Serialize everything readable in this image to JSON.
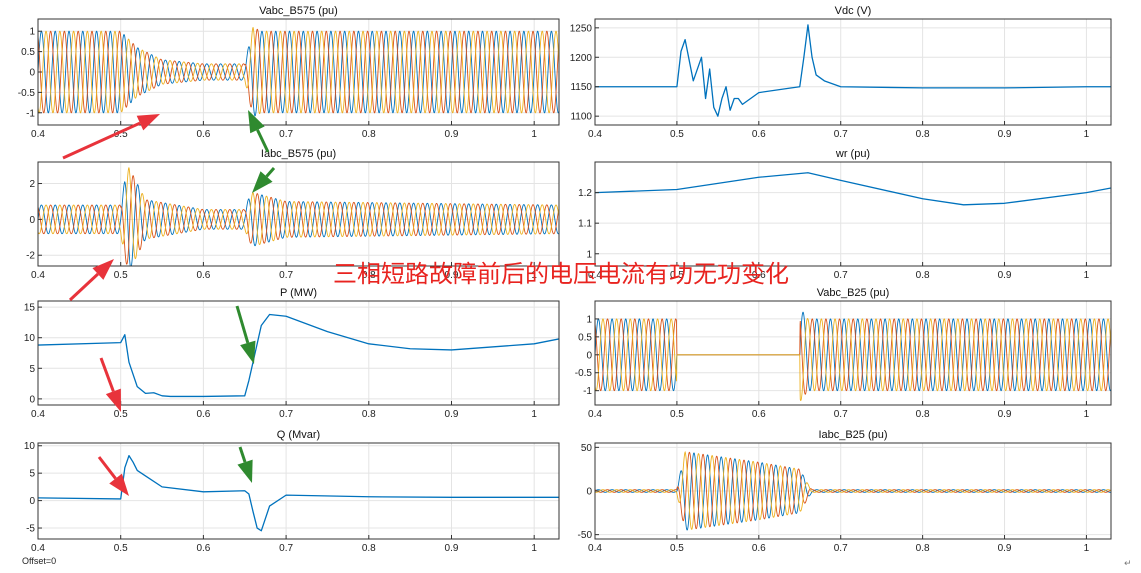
{
  "overlay": {
    "caption": "三相短路故障前后的电压电流有功无功变化",
    "offset_label": "Offset=0",
    "corner_mark": "↵"
  },
  "colors": {
    "phase_a": "#0072bd",
    "phase_b": "#d95319",
    "phase_c": "#edb120",
    "arrow_red": "#e8333b",
    "arrow_green": "#2f8a2f",
    "grid": "#e4e4e4",
    "axes": "#333333"
  },
  "chart_data": [
    {
      "type": "line",
      "id": "vabc-b575",
      "title": "Vabc_B575 (pu)",
      "xlim": [
        0.4,
        1.03
      ],
      "ylim": [
        -1.3,
        1.3
      ],
      "xticks": [
        "0.4",
        "0.5",
        "0.6",
        "0.7",
        "0.8",
        "0.9",
        "1"
      ],
      "yticks": [
        "-1",
        "-0.5",
        "0",
        "0.5",
        "1"
      ],
      "series": [
        {
          "model": "three-phase"
        }
      ],
      "envelope": {
        "t": [
          0.4,
          0.5,
          0.52,
          0.55,
          0.6,
          0.65,
          0.66,
          0.67,
          1.03
        ],
        "amplitude": [
          1.0,
          1.0,
          0.6,
          0.3,
          0.2,
          0.2,
          1.1,
          1.0,
          1.0
        ]
      },
      "grid": true
    },
    {
      "type": "line",
      "id": "vdc",
      "title": "Vdc (V)",
      "xlim": [
        0.4,
        1.03
      ],
      "ylim": [
        1085,
        1265
      ],
      "xticks": [
        "0.4",
        "0.5",
        "0.6",
        "0.7",
        "0.8",
        "0.9",
        "1"
      ],
      "yticks": [
        "1100",
        "1150",
        "1200",
        "1250"
      ],
      "series": [
        {
          "x": [
            0.4,
            0.5,
            0.505,
            0.51,
            0.52,
            0.53,
            0.535,
            0.54,
            0.545,
            0.55,
            0.555,
            0.56,
            0.565,
            0.57,
            0.575,
            0.58,
            0.6,
            0.64,
            0.65,
            0.655,
            0.66,
            0.665,
            0.67,
            0.68,
            0.7,
            0.8,
            0.9,
            1.0,
            1.03
          ],
          "y": [
            1150,
            1150,
            1210,
            1230,
            1160,
            1200,
            1130,
            1180,
            1115,
            1100,
            1130,
            1150,
            1110,
            1130,
            1130,
            1120,
            1140,
            1148,
            1150,
            1200,
            1255,
            1200,
            1170,
            1160,
            1150,
            1148,
            1148,
            1150,
            1150
          ]
        }
      ],
      "grid": true
    },
    {
      "type": "line",
      "id": "iabc-b575",
      "title": "Iabc_B575 (pu)",
      "xlim": [
        0.4,
        1.03
      ],
      "ylim": [
        -2.6,
        3.2
      ],
      "xticks": [
        "0.4",
        "0.5",
        "0.6",
        "0.7",
        "0.8",
        "0.9",
        "1"
      ],
      "yticks": [
        "-2",
        "0",
        "2"
      ],
      "series": [
        {
          "model": "three-phase"
        }
      ],
      "envelope": {
        "t": [
          0.4,
          0.5,
          0.505,
          0.51,
          0.53,
          0.6,
          0.65,
          0.655,
          0.66,
          0.7,
          1.03
        ],
        "amplitude": [
          0.8,
          0.8,
          2.2,
          2.9,
          1.1,
          0.55,
          0.55,
          1.2,
          1.5,
          1.0,
          0.8
        ]
      },
      "grid": true
    },
    {
      "type": "line",
      "id": "wr",
      "title": "wr (pu)",
      "xlim": [
        0.4,
        1.03
      ],
      "ylim": [
        0.96,
        1.3
      ],
      "xticks": [
        "0.4",
        "0.5",
        "0.6",
        "0.7",
        "0.8",
        "0.9",
        "1"
      ],
      "yticks": [
        "1",
        "1.1",
        "1.2"
      ],
      "series": [
        {
          "x": [
            0.4,
            0.5,
            0.55,
            0.6,
            0.66,
            0.7,
            0.8,
            0.85,
            0.9,
            1.0,
            1.03
          ],
          "y": [
            1.2,
            1.21,
            1.23,
            1.25,
            1.265,
            1.24,
            1.18,
            1.16,
            1.165,
            1.2,
            1.215
          ]
        }
      ],
      "grid": true
    },
    {
      "type": "line",
      "id": "p",
      "title": "P (MW)",
      "xlim": [
        0.4,
        1.03
      ],
      "ylim": [
        -1,
        16
      ],
      "xticks": [
        "0.4",
        "0.5",
        "0.6",
        "0.7",
        "0.8",
        "0.9",
        "1"
      ],
      "yticks": [
        "0",
        "5",
        "10",
        "15"
      ],
      "series": [
        {
          "x": [
            0.4,
            0.5,
            0.505,
            0.51,
            0.52,
            0.53,
            0.54,
            0.55,
            0.56,
            0.6,
            0.65,
            0.655,
            0.66,
            0.67,
            0.68,
            0.7,
            0.75,
            0.8,
            0.85,
            0.9,
            1.0,
            1.03
          ],
          "y": [
            8.8,
            9.2,
            10.5,
            6,
            2,
            0.9,
            1,
            0.5,
            0.4,
            0.4,
            0.5,
            3,
            6,
            12,
            13.8,
            13.5,
            11,
            9,
            8.2,
            8.0,
            9,
            9.8
          ]
        }
      ],
      "grid": true
    },
    {
      "type": "line",
      "id": "vabc-b25",
      "title": "Vabc_B25 (pu)",
      "xlim": [
        0.4,
        1.03
      ],
      "ylim": [
        -1.4,
        1.5
      ],
      "xticks": [
        "0.4",
        "0.5",
        "0.6",
        "0.7",
        "0.8",
        "0.9",
        "1"
      ],
      "yticks": [
        "-1",
        "-0.5",
        "0",
        "0.5",
        "1"
      ],
      "series": [
        {
          "model": "three-phase"
        }
      ],
      "envelope": {
        "t": [
          0.4,
          0.4995,
          0.5,
          0.65,
          0.6505,
          0.66,
          0.67,
          1.03
        ],
        "amplitude": [
          1.0,
          1.0,
          0.0,
          0.0,
          1.3,
          1.0,
          1.0,
          1.0
        ]
      },
      "grid": true
    },
    {
      "type": "line",
      "id": "q",
      "title": "Q (Mvar)",
      "xlim": [
        0.4,
        1.03
      ],
      "ylim": [
        -7,
        10.5
      ],
      "xticks": [
        "0.4",
        "0.5",
        "0.6",
        "0.7",
        "0.8",
        "0.9",
        "1"
      ],
      "yticks": [
        "-5",
        "0",
        "5",
        "10"
      ],
      "series": [
        {
          "x": [
            0.4,
            0.5,
            0.505,
            0.51,
            0.515,
            0.52,
            0.53,
            0.55,
            0.6,
            0.65,
            0.655,
            0.66,
            0.665,
            0.67,
            0.68,
            0.7,
            0.8,
            0.9,
            1.0,
            1.03
          ],
          "y": [
            0.5,
            0.3,
            6,
            8.2,
            7,
            5.5,
            4.5,
            2.5,
            1.6,
            1.8,
            1.2,
            -2,
            -5,
            -5.5,
            -1,
            1,
            0.7,
            0.6,
            0.6,
            0.6
          ]
        }
      ],
      "grid": true
    },
    {
      "type": "line",
      "id": "iabc-b25",
      "title": "Iabc_B25 (pu)",
      "xlim": [
        0.4,
        1.03
      ],
      "ylim": [
        -55,
        55
      ],
      "xticks": [
        "0.4",
        "0.5",
        "0.6",
        "0.7",
        "0.8",
        "0.9",
        "1"
      ],
      "yticks": [
        "-50",
        "0",
        "50"
      ],
      "series": [
        {
          "model": "three-phase"
        }
      ],
      "envelope": {
        "t": [
          0.4,
          0.4995,
          0.51,
          0.6,
          0.65,
          0.66,
          0.665,
          1.03
        ],
        "amplitude": [
          1.5,
          1.5,
          45,
          33,
          25,
          8,
          1.5,
          1.5
        ]
      },
      "grid": true
    }
  ]
}
